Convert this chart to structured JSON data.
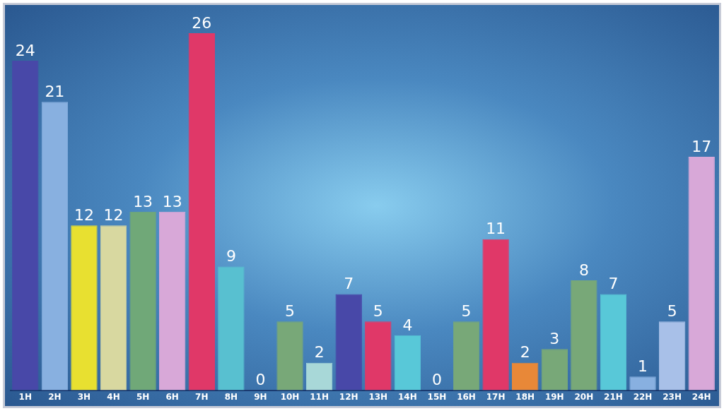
{
  "chart_data": {
    "type": "bar",
    "categories": [
      "1H",
      "2H",
      "3H",
      "4H",
      "5H",
      "6H",
      "7H",
      "8H",
      "9H",
      "10H",
      "11H",
      "12H",
      "13H",
      "14H",
      "15H",
      "16H",
      "17H",
      "18H",
      "19H",
      "20H",
      "21H",
      "22H",
      "23H",
      "24H"
    ],
    "values": [
      24,
      21,
      12,
      12,
      13,
      13,
      26,
      9,
      0,
      5,
      2,
      7,
      5,
      4,
      0,
      5,
      11,
      2,
      3,
      8,
      7,
      1,
      5,
      17
    ],
    "colors": [
      "#4848a8",
      "#88b0e0",
      "#e8e030",
      "#d8d8a0",
      "#70a878",
      "#d8a8d8",
      "#e03868",
      "#58c0d0",
      "#4060a0",
      "#78a878",
      "#a8d8d8",
      "#4848a8",
      "#e03868",
      "#58c8d8",
      "#4060a0",
      "#78a878",
      "#e03868",
      "#e88838",
      "#78a878",
      "#78a878",
      "#58c8d8",
      "#88b0e0",
      "#a8c0e8",
      "#d8a8d8"
    ],
    "data_labels": true,
    "grid": false,
    "legend": false
  }
}
